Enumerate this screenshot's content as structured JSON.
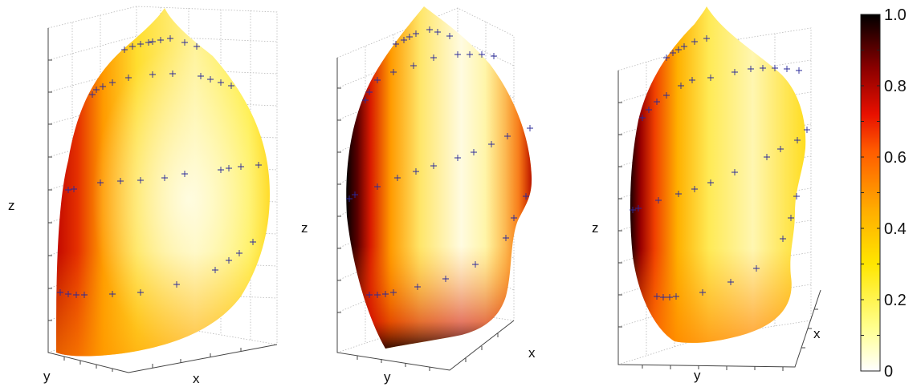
{
  "chart_data": {
    "type": "surface3d",
    "panels": [
      {
        "xlabel": "x",
        "ylabel": "y",
        "zlabel": "z"
      },
      {
        "xlabel": "x",
        "ylabel": "y",
        "zlabel": "z"
      },
      {
        "xlabel": "x",
        "ylabel": "y",
        "zlabel": "z"
      }
    ],
    "colorbar": {
      "ticks": [
        "0",
        "0.2",
        "0.4",
        "0.6",
        "0.8",
        "1.0"
      ],
      "range": [
        0,
        1
      ],
      "colormap": "hot-reversed",
      "colors": {
        "low": "#ffffff",
        "mid_low": "#ffee00",
        "mid": "#ffb000",
        "mid_high": "#ee2000",
        "high_dark": "#8a0000",
        "top": "#000000"
      }
    },
    "marker_color": "#2a2a9a"
  }
}
